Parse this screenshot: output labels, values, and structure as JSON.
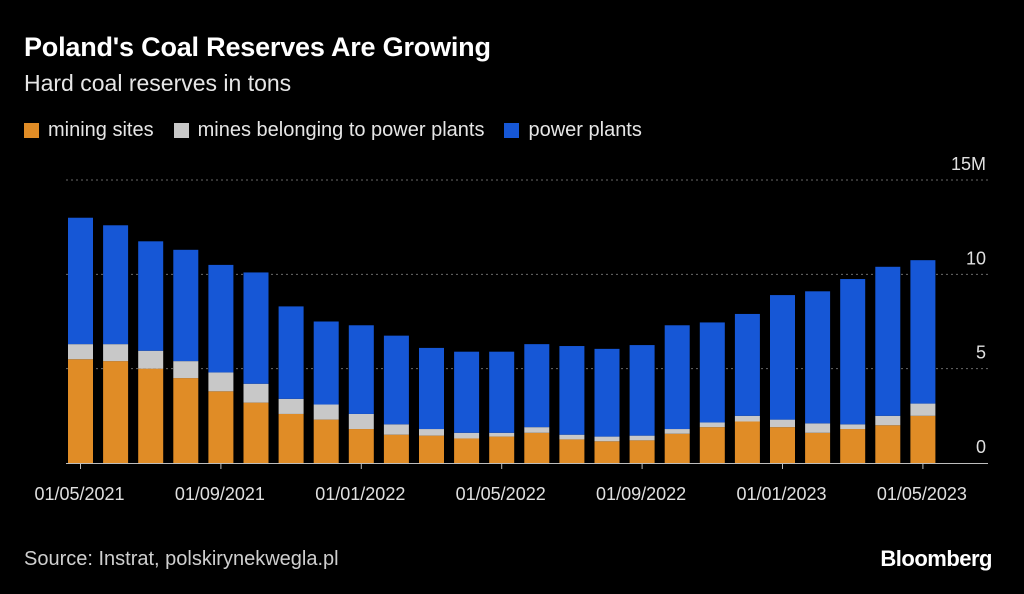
{
  "header": {
    "title": "Poland's Coal Reserves Are Growing",
    "subtitle": "Hard coal reserves in tons"
  },
  "legend": [
    {
      "label": "mining sites",
      "color": "#e08c26"
    },
    {
      "label": "mines belonging to power plants",
      "color": "#c8c8c8"
    },
    {
      "label": "power plants",
      "color": "#1657d6"
    }
  ],
  "footer": {
    "source": "Source: Instrat, polskirynekwegla.pl",
    "brand": "Bloomberg"
  },
  "chart_data": {
    "type": "bar",
    "stacked": true,
    "title": "Poland's Coal Reserves Are Growing",
    "subtitle": "Hard coal reserves in tons",
    "unit": "tons (millions)",
    "ylim": [
      0,
      15
    ],
    "yticks": [
      0,
      5,
      10,
      15
    ],
    "ytick_labels": [
      "0",
      "5",
      "10",
      "15M"
    ],
    "grid": true,
    "legend_position": "top-left",
    "categories": [
      "2021-05",
      "2021-06",
      "2021-07",
      "2021-08",
      "2021-09",
      "2021-10",
      "2021-11",
      "2021-12",
      "2022-01",
      "2022-02",
      "2022-03",
      "2022-04",
      "2022-05",
      "2022-06",
      "2022-07",
      "2022-08",
      "2022-09",
      "2022-10",
      "2022-11",
      "2022-12",
      "2023-01",
      "2023-02",
      "2023-03",
      "2023-04",
      "2023-05"
    ],
    "xtick_labels": [
      {
        "index": 0,
        "label": "01/05/2021"
      },
      {
        "index": 4,
        "label": "01/09/2021"
      },
      {
        "index": 8,
        "label": "01/01/2022"
      },
      {
        "index": 12,
        "label": "01/05/2022"
      },
      {
        "index": 16,
        "label": "01/09/2022"
      },
      {
        "index": 20,
        "label": "01/01/2023"
      },
      {
        "index": 24,
        "label": "01/05/2023"
      }
    ],
    "series": [
      {
        "name": "mining sites",
        "color": "#e08c26",
        "values": [
          5.5,
          5.4,
          5.0,
          4.5,
          3.8,
          3.2,
          2.6,
          2.3,
          1.8,
          1.5,
          1.45,
          1.3,
          1.4,
          1.6,
          1.25,
          1.15,
          1.2,
          1.55,
          1.9,
          2.2,
          1.9,
          1.6,
          1.8,
          2.0,
          2.5
        ]
      },
      {
        "name": "mines belonging to power plants",
        "color": "#c8c8c8",
        "values": [
          0.8,
          0.9,
          0.95,
          0.9,
          1.0,
          1.0,
          0.8,
          0.8,
          0.8,
          0.55,
          0.35,
          0.3,
          0.2,
          0.3,
          0.25,
          0.25,
          0.25,
          0.25,
          0.25,
          0.3,
          0.4,
          0.5,
          0.25,
          0.5,
          0.65
        ]
      },
      {
        "name": "power plants",
        "color": "#1657d6",
        "values": [
          6.7,
          6.3,
          5.8,
          5.9,
          5.7,
          5.9,
          4.9,
          4.4,
          4.7,
          4.7,
          4.3,
          4.3,
          4.3,
          4.4,
          4.7,
          4.65,
          4.8,
          5.5,
          5.3,
          5.4,
          6.6,
          7.0,
          7.7,
          7.9,
          7.6
        ]
      }
    ]
  }
}
